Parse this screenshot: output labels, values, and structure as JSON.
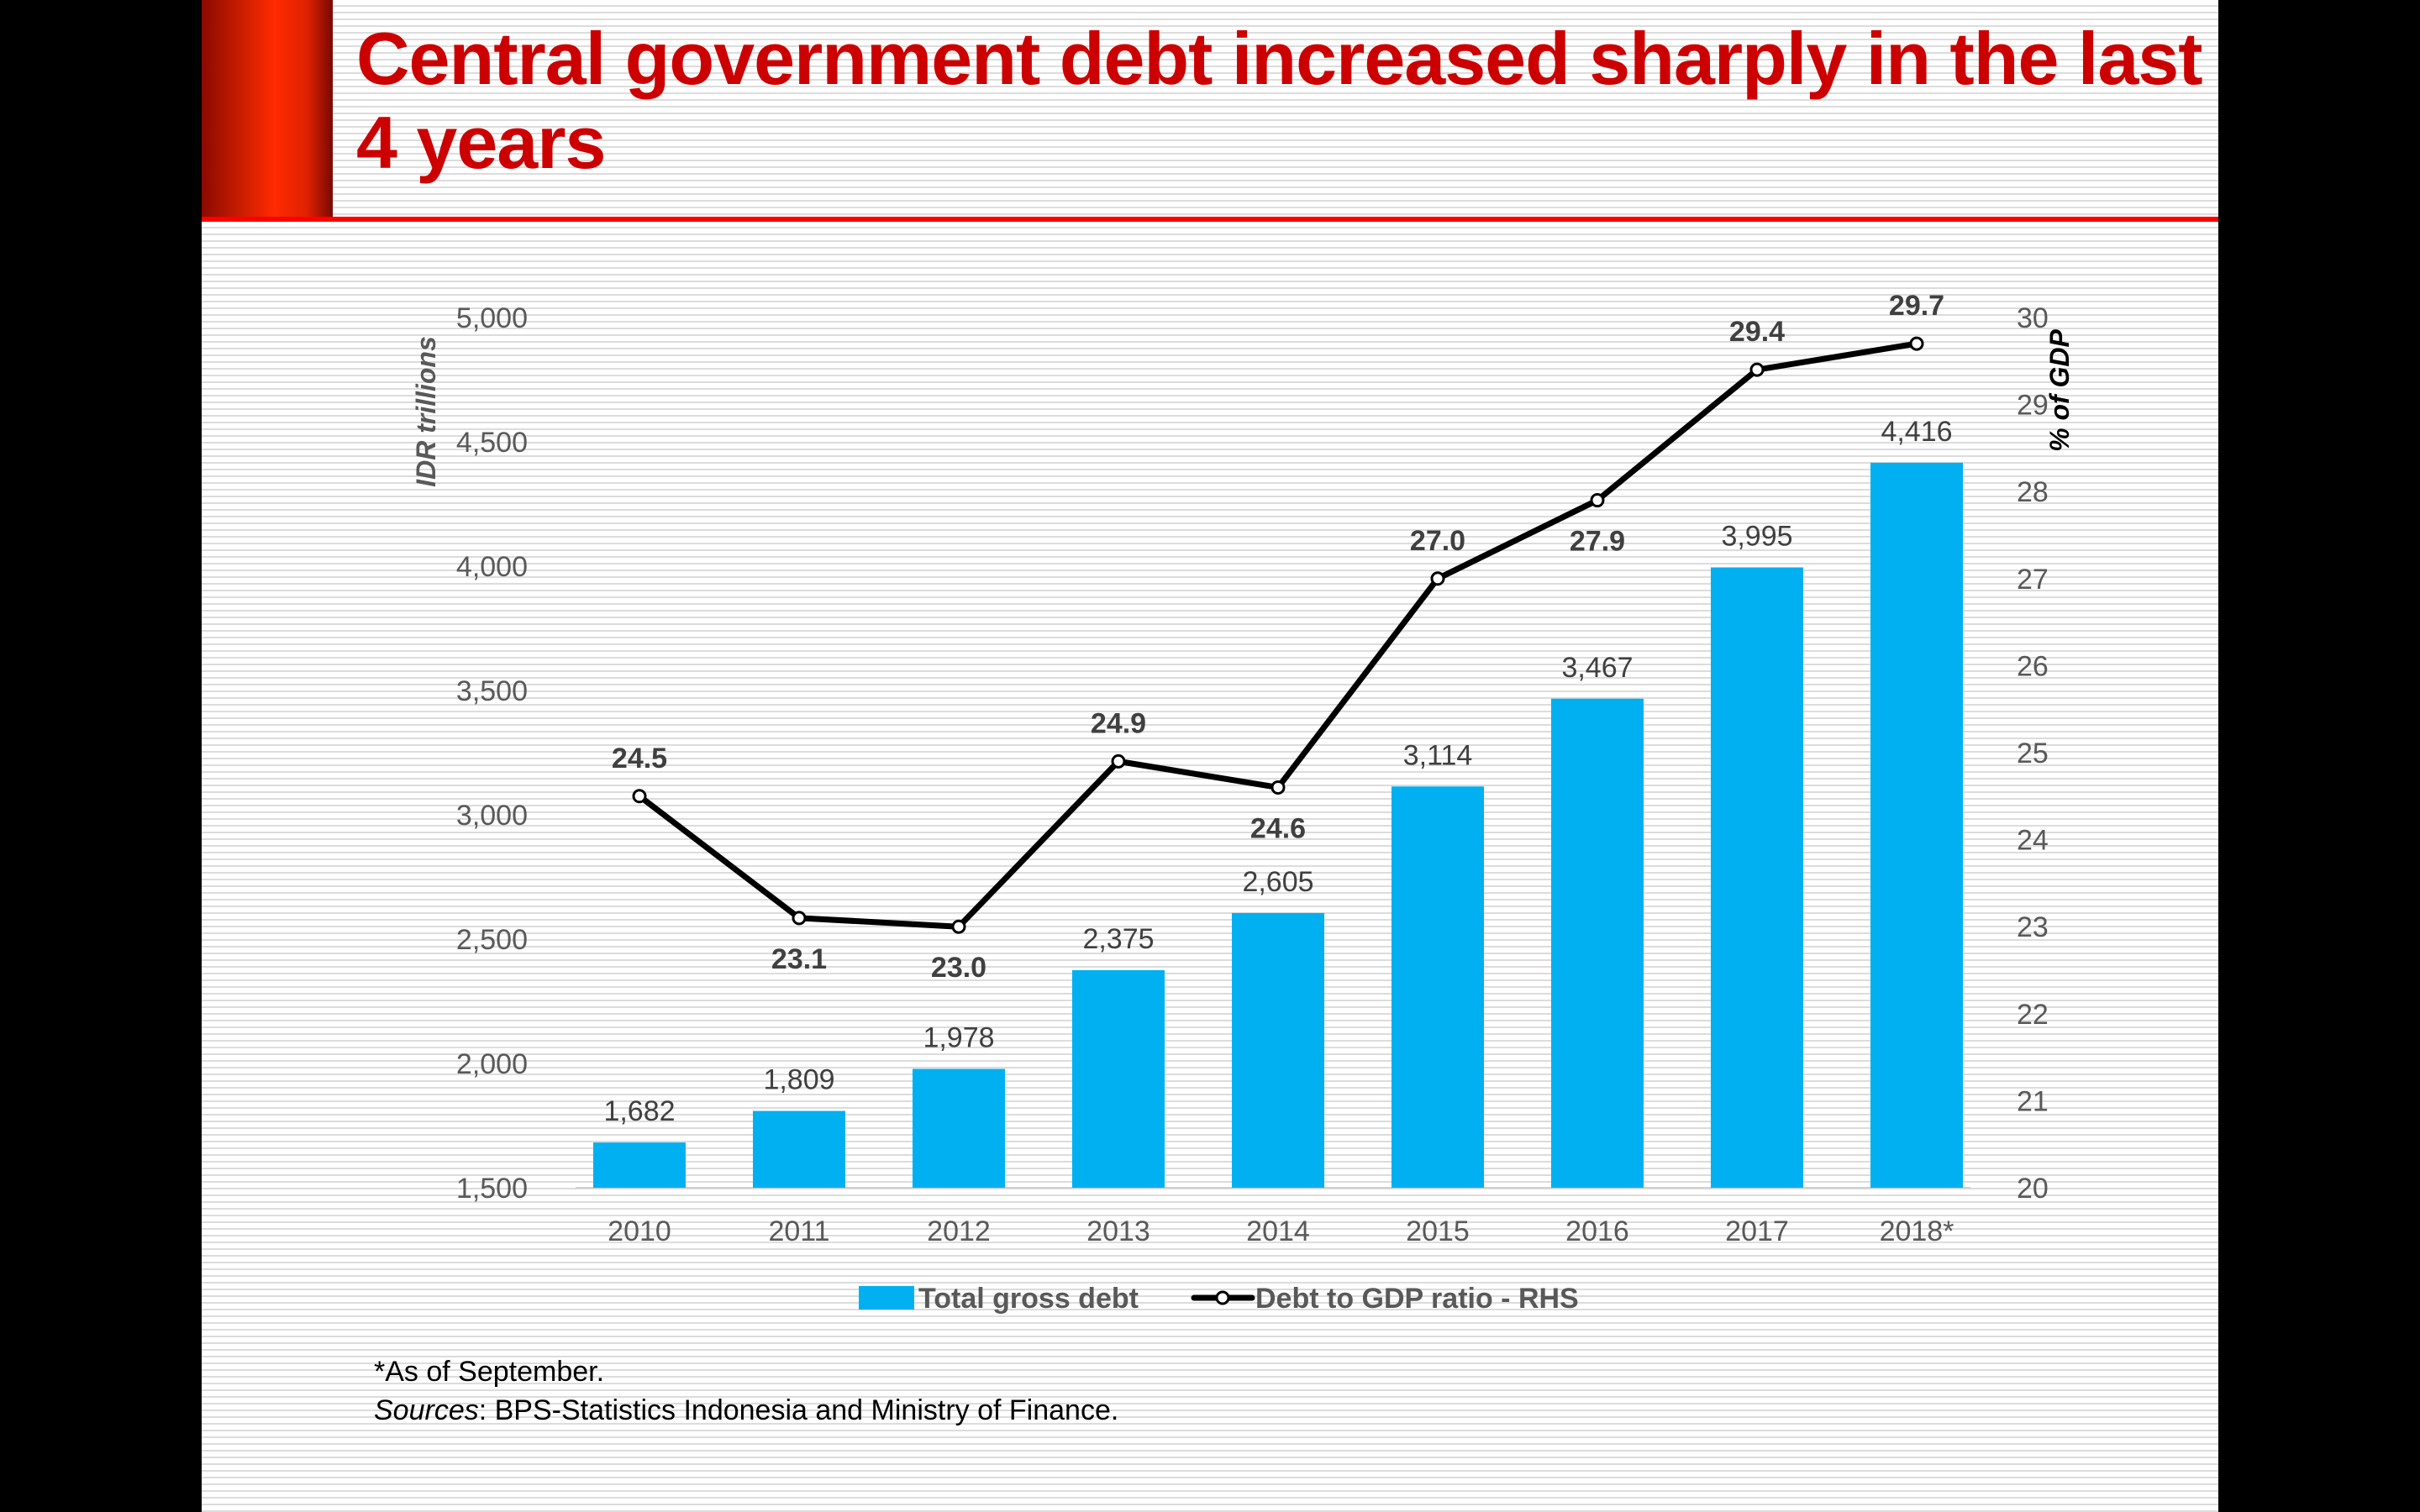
{
  "slide": {
    "title": "Central government debt increased sharply in the last 4 years",
    "title_color": "#cc0000",
    "accent_color": "#ff0000",
    "footnote": "*As of September.",
    "sources_label": "Sources",
    "sources_text": ": BPS-Statistics Indonesia and Ministry of Finance."
  },
  "chart_data": {
    "type": "bar",
    "title": "",
    "categories": [
      "2010",
      "2011",
      "2012",
      "2013",
      "2014",
      "2015",
      "2016",
      "2017",
      "2018*"
    ],
    "series": [
      {
        "name": "Total gross debt",
        "type": "bar",
        "axis": "left",
        "color": "#00b0f0",
        "values": [
          1682,
          1809,
          1978,
          2375,
          2605,
          3114,
          3467,
          3995,
          4416
        ],
        "labels": [
          "1,682",
          "1,809",
          "1,978",
          "2,375",
          "2,605",
          "3,114",
          "3,467",
          "3,995",
          "4,416"
        ]
      },
      {
        "name": "Debt to GDP ratio - RHS",
        "type": "line",
        "axis": "right",
        "color": "#000000",
        "marker": "open-circle",
        "values": [
          24.5,
          23.1,
          23.0,
          24.9,
          24.6,
          27.0,
          27.9,
          29.4,
          29.7
        ],
        "labels": [
          "24.5",
          "23.1",
          "23.0",
          "24.9",
          "24.6",
          "27.0",
          "27.9",
          "29.4",
          "29.7"
        ],
        "label_positions": [
          "above",
          "below",
          "below",
          "above",
          "below",
          "above",
          "below",
          "above",
          "above"
        ]
      }
    ],
    "ylabel": "IDR trillions",
    "ylim": [
      1500,
      5000
    ],
    "yticks": [
      1500,
      2000,
      2500,
      3000,
      3500,
      4000,
      4500,
      5000
    ],
    "ytick_labels": [
      "1,500",
      "2,000",
      "2,500",
      "3,000",
      "3,500",
      "4,000",
      "4,500",
      "5,000"
    ],
    "y2label": "% of GDP",
    "y2lim": [
      20,
      30
    ],
    "y2ticks": [
      20,
      21,
      22,
      23,
      24,
      25,
      26,
      27,
      28,
      29,
      30
    ],
    "y2tick_labels": [
      "20",
      "21",
      "22",
      "23",
      "24",
      "25",
      "26",
      "27",
      "28",
      "29",
      "30"
    ],
    "xlabel": "",
    "grid": false,
    "legend": {
      "position": "bottom",
      "entries": [
        "Total gross debt",
        "Debt to GDP ratio - RHS"
      ]
    }
  }
}
